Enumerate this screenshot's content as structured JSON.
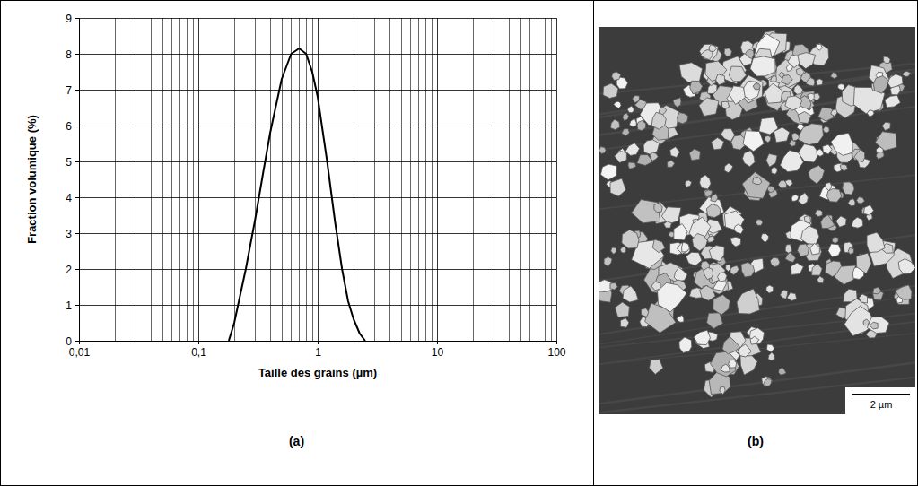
{
  "chart_data": {
    "type": "line",
    "x_label": "Taille des grains (µm)",
    "y_label": "Fraction volumique (%)",
    "x": [
      0.18,
      0.2,
      0.25,
      0.3,
      0.35,
      0.4,
      0.5,
      0.6,
      0.7,
      0.8,
      0.9,
      1.0,
      1.2,
      1.4,
      1.6,
      1.8,
      2.0,
      2.25,
      2.5
    ],
    "values": [
      0,
      0.5,
      2.0,
      3.4,
      4.7,
      5.8,
      7.3,
      8.0,
      8.15,
      8.0,
      7.5,
      6.8,
      5.0,
      3.3,
      2.0,
      1.1,
      0.6,
      0.2,
      0
    ],
    "color": "#000000",
    "log": "x",
    "grid": true,
    "xlim": [
      0.01,
      100
    ],
    "xticks": [
      {
        "value": 0.01,
        "label": "0,01"
      },
      {
        "value": 0.1,
        "label": "0,1"
      },
      1,
      10,
      100
    ],
    "ylim": [
      0,
      9
    ],
    "yticks": [
      0,
      1,
      2,
      3,
      4,
      5,
      6,
      7,
      8,
      9
    ]
  },
  "panels": [
    {
      "label": "(a)"
    },
    {
      "label": "(b)",
      "scale_bar": "2 µm"
    }
  ]
}
